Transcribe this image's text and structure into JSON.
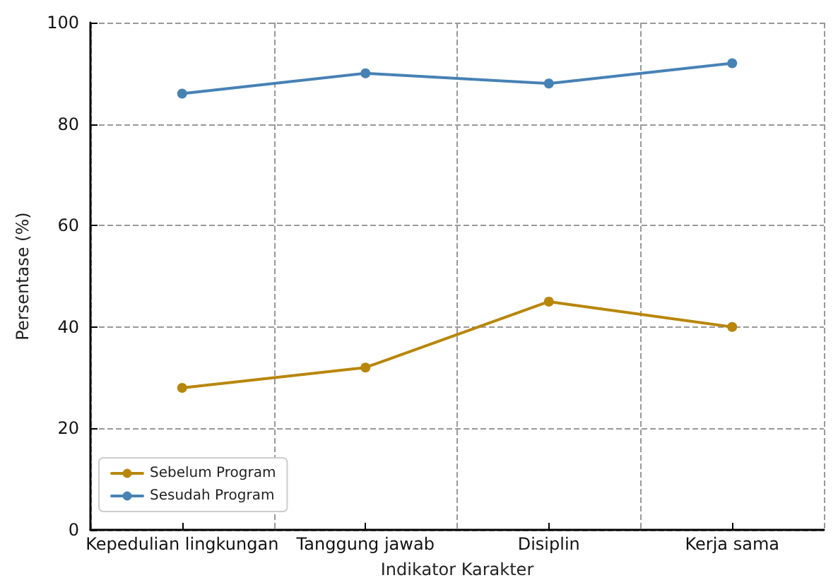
{
  "chart_data": {
    "type": "line",
    "xlabel": "Indikator Karakter",
    "ylabel": "Persentase (%)",
    "categories": [
      "Kepedulian lingkungan",
      "Tanggung jawab",
      "Disiplin",
      "Kerja sama"
    ],
    "series": [
      {
        "name": "Sebelum Program",
        "color": "#b8860b",
        "values": [
          28,
          32,
          45,
          40
        ]
      },
      {
        "name": "Sesudah Program",
        "color": "#4682b4",
        "values": [
          86,
          90,
          88,
          92
        ]
      }
    ],
    "ylim": [
      0,
      100
    ],
    "yticks": [
      0,
      20,
      40,
      60,
      80,
      100
    ],
    "grid": true,
    "legend": "bottom left",
    "marker": "circle",
    "line_style": "solid"
  }
}
